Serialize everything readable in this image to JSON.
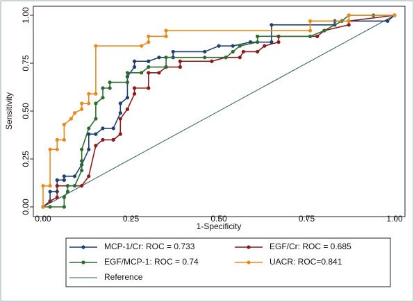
{
  "chart_data": {
    "type": "line",
    "xlabel": "1-Specificity",
    "ylabel": "Sensitivity",
    "xlim": [
      0,
      1
    ],
    "ylim": [
      0,
      1
    ],
    "xticks": [
      {
        "value": 0,
        "label": "0.00"
      },
      {
        "value": 0.25,
        "label": "0.25"
      },
      {
        "value": 0.5,
        "label": "0.50"
      },
      {
        "value": 0.75,
        "label": "0.75"
      },
      {
        "value": 1,
        "label": "1.00"
      }
    ],
    "yticks": [
      {
        "value": 0,
        "label": "0.00"
      },
      {
        "value": 0.25,
        "label": "0.25"
      },
      {
        "value": 0.5,
        "label": "0.50"
      },
      {
        "value": 0.75,
        "label": "0.75"
      },
      {
        "value": 1,
        "label": "1.00"
      }
    ],
    "grid": false,
    "legend": "bottom",
    "series": [
      {
        "name": "MCP-1/Cr: ROC = 0.733",
        "color": "#1f3f6e",
        "marker": true,
        "x": [
          0,
          0.02,
          0.02,
          0.04,
          0.04,
          0.06,
          0.06,
          0.09,
          0.11,
          0.13,
          0.13,
          0.15,
          0.17,
          0.2,
          0.22,
          0.22,
          0.24,
          0.24,
          0.26,
          0.26,
          0.3,
          0.33,
          0.37,
          0.37,
          0.46,
          0.5,
          0.54,
          0.59,
          0.65,
          0.65,
          0.83,
          0.83,
          0.98,
          1
        ],
        "values": [
          0,
          0.03,
          0.08,
          0.08,
          0.14,
          0.14,
          0.16,
          0.16,
          0.22,
          0.3,
          0.38,
          0.38,
          0.41,
          0.41,
          0.49,
          0.54,
          0.57,
          0.68,
          0.73,
          0.76,
          0.76,
          0.78,
          0.78,
          0.81,
          0.81,
          0.84,
          0.84,
          0.86,
          0.86,
          0.95,
          0.95,
          0.97,
          0.97,
          1
        ]
      },
      {
        "name": "EGF/Cr: ROC = 0.685",
        "color": "#8b1a1a",
        "marker": true,
        "x": [
          0,
          0.02,
          0.04,
          0.04,
          0.11,
          0.13,
          0.15,
          0.17,
          0.2,
          0.22,
          0.22,
          0.24,
          0.26,
          0.26,
          0.3,
          0.3,
          0.33,
          0.35,
          0.39,
          0.39,
          0.48,
          0.52,
          0.56,
          0.57,
          0.61,
          0.63,
          0.67,
          0.67,
          0.78,
          0.8,
          0.87,
          0.87,
          1
        ],
        "values": [
          0,
          0.03,
          0.05,
          0.11,
          0.11,
          0.16,
          0.32,
          0.35,
          0.35,
          0.38,
          0.46,
          0.51,
          0.59,
          0.62,
          0.62,
          0.7,
          0.7,
          0.73,
          0.73,
          0.76,
          0.76,
          0.78,
          0.78,
          0.81,
          0.81,
          0.84,
          0.86,
          0.89,
          0.89,
          0.92,
          0.95,
          0.97,
          1
        ]
      },
      {
        "name": "EGF/MCP-1: ROC = 0.74",
        "color": "#2e6b2e",
        "marker": true,
        "x": [
          0,
          0.02,
          0.06,
          0.06,
          0.07,
          0.07,
          0.09,
          0.11,
          0.11,
          0.11,
          0.13,
          0.15,
          0.15,
          0.17,
          0.17,
          0.19,
          0.19,
          0.24,
          0.24,
          0.28,
          0.3,
          0.35,
          0.35,
          0.46,
          0.52,
          0.54,
          0.56,
          0.61,
          0.61,
          0.76,
          0.8,
          0.85,
          0.87,
          0.94,
          1
        ],
        "values": [
          0,
          0,
          0,
          0.05,
          0.08,
          0.11,
          0.11,
          0.19,
          0.24,
          0.3,
          0.41,
          0.46,
          0.54,
          0.57,
          0.62,
          0.62,
          0.65,
          0.65,
          0.7,
          0.7,
          0.73,
          0.73,
          0.78,
          0.78,
          0.78,
          0.81,
          0.84,
          0.86,
          0.89,
          0.89,
          0.92,
          0.97,
          1,
          1,
          1
        ]
      },
      {
        "name": "UACR: ROC=0.841",
        "color": "#e8891f",
        "marker": true,
        "x": [
          0,
          0,
          0.02,
          0.02,
          0.04,
          0.04,
          0.06,
          0.06,
          0.08,
          0.09,
          0.11,
          0.11,
          0.13,
          0.13,
          0.15,
          0.15,
          0.28,
          0.3,
          0.3,
          0.35,
          0.35,
          0.76,
          0.76,
          0.87,
          0.87,
          1
        ],
        "values": [
          0,
          0.11,
          0.11,
          0.3,
          0.3,
          0.35,
          0.35,
          0.43,
          0.46,
          0.49,
          0.51,
          0.54,
          0.54,
          0.59,
          0.59,
          0.84,
          0.84,
          0.86,
          0.89,
          0.89,
          0.92,
          0.92,
          0.97,
          0.97,
          1,
          1
        ]
      },
      {
        "name": "Reference",
        "color": "#2f5f5a",
        "marker": false,
        "x": [
          0,
          1
        ],
        "values": [
          0,
          1
        ]
      }
    ]
  }
}
